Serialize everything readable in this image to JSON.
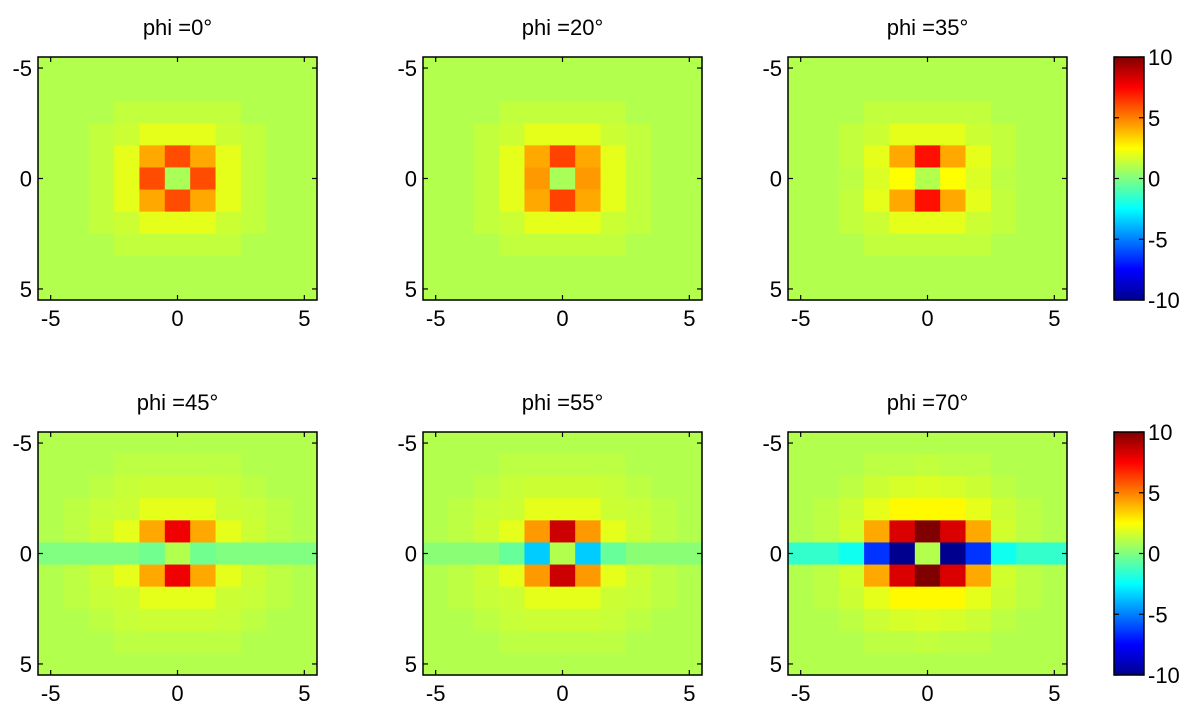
{
  "chart_data": {
    "type": "heatmap",
    "colormap": "jet",
    "clim": [
      -10,
      10
    ],
    "colorbar_ticks": [
      10,
      5,
      0,
      -5,
      -10
    ],
    "colorbar_tick_labels": [
      "10",
      "5",
      "0",
      "-5",
      "-10"
    ],
    "grid": false,
    "x_ticks": [
      -5,
      0,
      5
    ],
    "x_tick_labels": [
      "-5",
      "0",
      "5"
    ],
    "y_ticks": [
      -5,
      0,
      5
    ],
    "y_tick_labels": [
      "-5",
      "0",
      "5"
    ],
    "xlim": [
      -5.5,
      5.5
    ],
    "ylim": [
      -5.5,
      5.5
    ],
    "cell_coordinates": [
      -5,
      -4,
      -3,
      -2,
      -1,
      0,
      1,
      2,
      3,
      4,
      5
    ],
    "panels": [
      {
        "title": "phi =0°",
        "values": [
          [
            1,
            1,
            1,
            1,
            1,
            1,
            1,
            1,
            1,
            1,
            1
          ],
          [
            1,
            1,
            1,
            1,
            1,
            1,
            1,
            1,
            1,
            1,
            1
          ],
          [
            1,
            1,
            1,
            1.3,
            1.3,
            1.3,
            1.3,
            1.3,
            1,
            1,
            1
          ],
          [
            1,
            1,
            1.3,
            1.5,
            2,
            2,
            2,
            1.5,
            1.3,
            1,
            1
          ],
          [
            1,
            1,
            1.3,
            2,
            4.2,
            6,
            4.2,
            2,
            1.3,
            1,
            1
          ],
          [
            1,
            1,
            1.3,
            2,
            6,
            0.8,
            6,
            2,
            1.3,
            1,
            1
          ],
          [
            1,
            1,
            1.3,
            2,
            4.2,
            6,
            4.2,
            2,
            1.3,
            1,
            1
          ],
          [
            1,
            1,
            1.3,
            1.5,
            2,
            2,
            2,
            1.5,
            1.3,
            1,
            1
          ],
          [
            1,
            1,
            1,
            1.3,
            1.3,
            1.3,
            1.3,
            1.3,
            1,
            1,
            1
          ],
          [
            1,
            1,
            1,
            1,
            1,
            1,
            1,
            1,
            1,
            1,
            1
          ],
          [
            1,
            1,
            1,
            1,
            1,
            1,
            1,
            1,
            1,
            1,
            1
          ]
        ]
      },
      {
        "title": "phi =20°",
        "values": [
          [
            1,
            1,
            1,
            1,
            1,
            1,
            1,
            1,
            1,
            1,
            1
          ],
          [
            1,
            1,
            1,
            1,
            1,
            1,
            1,
            1,
            1,
            1,
            1
          ],
          [
            1,
            1,
            1,
            1.3,
            1.3,
            1.3,
            1.3,
            1.3,
            1,
            1,
            1
          ],
          [
            1,
            1,
            1.3,
            1.5,
            2,
            2,
            2,
            1.5,
            1.3,
            1,
            1
          ],
          [
            1,
            1,
            1.3,
            2,
            4.2,
            6.2,
            4.2,
            2,
            1.3,
            1,
            1
          ],
          [
            1,
            1,
            1.3,
            2,
            4.5,
            0.8,
            4.5,
            2,
            1.3,
            1,
            1
          ],
          [
            1,
            1,
            1.3,
            2,
            4.2,
            6.2,
            4.2,
            2,
            1.3,
            1,
            1
          ],
          [
            1,
            1,
            1.3,
            1.5,
            2,
            2,
            2,
            1.5,
            1.3,
            1,
            1
          ],
          [
            1,
            1,
            1,
            1.3,
            1.3,
            1.3,
            1.3,
            1.3,
            1,
            1,
            1
          ],
          [
            1,
            1,
            1,
            1,
            1,
            1,
            1,
            1,
            1,
            1,
            1
          ],
          [
            1,
            1,
            1,
            1,
            1,
            1,
            1,
            1,
            1,
            1,
            1
          ]
        ]
      },
      {
        "title": "phi =35°",
        "values": [
          [
            1,
            1,
            1,
            1,
            1,
            1,
            1,
            1,
            1,
            1,
            1
          ],
          [
            1,
            1,
            1,
            1,
            1,
            1,
            1,
            1,
            1,
            1,
            1
          ],
          [
            1,
            1,
            1,
            1.3,
            1.3,
            1.3,
            1.3,
            1.3,
            1,
            1,
            1
          ],
          [
            1,
            1,
            1.3,
            1.5,
            2,
            2,
            2,
            1.5,
            1.3,
            1,
            1
          ],
          [
            1,
            1,
            1.3,
            2,
            4.2,
            7.2,
            4.2,
            2,
            1.3,
            1,
            1
          ],
          [
            1,
            1,
            1.2,
            1.8,
            2.5,
            1,
            2.5,
            1.8,
            1.2,
            1,
            1
          ],
          [
            1,
            1,
            1.3,
            2,
            4.2,
            7.2,
            4.2,
            2,
            1.3,
            1,
            1
          ],
          [
            1,
            1,
            1.3,
            1.5,
            2,
            2,
            2,
            1.5,
            1.3,
            1,
            1
          ],
          [
            1,
            1,
            1,
            1.3,
            1.3,
            1.3,
            1.3,
            1.3,
            1,
            1,
            1
          ],
          [
            1,
            1,
            1,
            1,
            1,
            1,
            1,
            1,
            1,
            1,
            1
          ],
          [
            1,
            1,
            1,
            1,
            1,
            1,
            1,
            1,
            1,
            1,
            1
          ]
        ]
      },
      {
        "title": "phi =45°",
        "values": [
          [
            1,
            1,
            1,
            1,
            1,
            1,
            1,
            1,
            1,
            1,
            1
          ],
          [
            1,
            1,
            1,
            1.2,
            1.2,
            1.2,
            1.2,
            1.2,
            1,
            1,
            1
          ],
          [
            1,
            1,
            1.2,
            1.4,
            1.5,
            1.5,
            1.5,
            1.4,
            1.2,
            1,
            1
          ],
          [
            1,
            1.2,
            1.4,
            1.5,
            2,
            2,
            2,
            1.5,
            1.4,
            1.2,
            1
          ],
          [
            1,
            1.2,
            1.5,
            2,
            4.2,
            7.8,
            4.2,
            2,
            1.5,
            1.2,
            1
          ],
          [
            0,
            0,
            0,
            0,
            -0.3,
            1,
            -0.3,
            0,
            0,
            0,
            0
          ],
          [
            1,
            1.2,
            1.5,
            2,
            4.2,
            7.8,
            4.2,
            2,
            1.5,
            1.2,
            1
          ],
          [
            1,
            1.2,
            1.4,
            1.5,
            2,
            2,
            2,
            1.5,
            1.4,
            1.2,
            1
          ],
          [
            1,
            1,
            1.2,
            1.4,
            1.5,
            1.5,
            1.5,
            1.4,
            1.2,
            1,
            1
          ],
          [
            1,
            1,
            1,
            1.2,
            1.2,
            1.2,
            1.2,
            1.2,
            1,
            1,
            1
          ],
          [
            1,
            1,
            1,
            1,
            1,
            1,
            1,
            1,
            1,
            1,
            1
          ]
        ]
      },
      {
        "title": "phi =55°",
        "values": [
          [
            1,
            1,
            1,
            1,
            1,
            1,
            1,
            1,
            1,
            1,
            1
          ],
          [
            1,
            1,
            1,
            1.2,
            1.2,
            1.2,
            1.2,
            1.2,
            1,
            1,
            1
          ],
          [
            1,
            1,
            1.2,
            1.4,
            1.5,
            1.5,
            1.5,
            1.4,
            1.2,
            1,
            1
          ],
          [
            1,
            1.2,
            1.4,
            1.5,
            2,
            2,
            2,
            1.5,
            1.4,
            1.2,
            1
          ],
          [
            1,
            1.2,
            1.5,
            2,
            4.5,
            8.5,
            4.5,
            2,
            1.5,
            1.2,
            1
          ],
          [
            0.2,
            0.2,
            0.2,
            -0.5,
            -3.5,
            1,
            -3.5,
            -0.5,
            0.2,
            0.2,
            0.2
          ],
          [
            1,
            1.2,
            1.5,
            2,
            4.5,
            8.5,
            4.5,
            2,
            1.5,
            1.2,
            1
          ],
          [
            1,
            1.2,
            1.4,
            1.5,
            2,
            2,
            2,
            1.5,
            1.4,
            1.2,
            1
          ],
          [
            1,
            1,
            1.2,
            1.4,
            1.5,
            1.5,
            1.5,
            1.4,
            1.2,
            1,
            1
          ],
          [
            1,
            1,
            1,
            1.2,
            1.2,
            1.2,
            1.2,
            1.2,
            1,
            1,
            1
          ],
          [
            1,
            1,
            1,
            1,
            1,
            1,
            1,
            1,
            1,
            1,
            1
          ]
        ]
      },
      {
        "title": "phi =70°",
        "values": [
          [
            1,
            1,
            1,
            1,
            1,
            1,
            1,
            1,
            1,
            1,
            1
          ],
          [
            1,
            1,
            1,
            1.2,
            1.2,
            1.3,
            1.2,
            1.2,
            1,
            1,
            1
          ],
          [
            1,
            1,
            1.2,
            1.5,
            1.7,
            1.8,
            1.7,
            1.5,
            1.2,
            1,
            1
          ],
          [
            1,
            1.2,
            1.5,
            2,
            2.6,
            2.6,
            2.6,
            2,
            1.5,
            1.2,
            1
          ],
          [
            1,
            1.2,
            1.6,
            4.2,
            8.2,
            10,
            8.2,
            4.2,
            1.6,
            1.2,
            1
          ],
          [
            -1.5,
            -1.5,
            -2.2,
            -6.5,
            -10,
            1,
            -10,
            -6.5,
            -2.2,
            -1.5,
            -1.5
          ],
          [
            1,
            1.2,
            1.6,
            4.2,
            8.2,
            10,
            8.2,
            4.2,
            1.6,
            1.2,
            1
          ],
          [
            1,
            1.2,
            1.5,
            2,
            2.6,
            2.6,
            2.6,
            2,
            1.5,
            1.2,
            1
          ],
          [
            1,
            1,
            1.2,
            1.5,
            1.7,
            1.8,
            1.7,
            1.5,
            1.2,
            1,
            1
          ],
          [
            1,
            1,
            1,
            1.2,
            1.2,
            1.3,
            1.2,
            1.2,
            1,
            1,
            1
          ],
          [
            1,
            1,
            1,
            1,
            1,
            1,
            1,
            1,
            1,
            1,
            1
          ]
        ]
      }
    ]
  }
}
